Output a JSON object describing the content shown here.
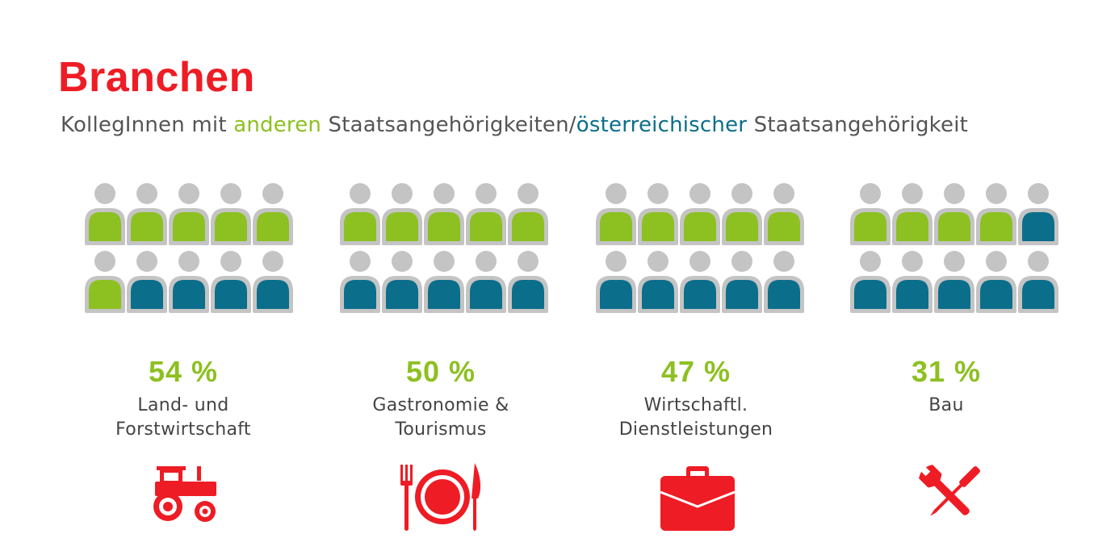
{
  "title": "Branchen",
  "subtitle": {
    "part1": "KollegInnen mit ",
    "green_word": "anderen",
    "part2": " Staatsangehörigkeiten/",
    "blue_word": "österreichischer",
    "part3": " Staatsangehörigkeit"
  },
  "colors": {
    "accent_red": "#ee1c24",
    "green": "#8dc021",
    "blue": "#0b6e8b",
    "gray": "#c4c4c4",
    "text": "#555555"
  },
  "chart_data": {
    "type": "pictograph",
    "icons_per_category": 10,
    "series": [
      {
        "name": "anderen Staatsangehörigkeiten",
        "color": "#8dc021"
      },
      {
        "name": "österreichischer Staatsangehörigkeit",
        "color": "#0b6e8b"
      }
    ],
    "categories": [
      {
        "label_line1": "Land- und",
        "label_line2": "Forstwirtschaft",
        "percent_label": "54 %",
        "value": 54,
        "icon": "tractor-icon"
      },
      {
        "label_line1": "Gastronomie &",
        "label_line2": "Tourismus",
        "percent_label": "50 %",
        "value": 50,
        "icon": "fork-plate-knife-icon"
      },
      {
        "label_line1": "Wirtschaftl.",
        "label_line2": "Dienstleistungen",
        "percent_label": "47 %",
        "value": 47,
        "icon": "briefcase-icon"
      },
      {
        "label_line1": "Bau",
        "label_line2": "",
        "percent_label": "31 %",
        "value": 31,
        "icon": "wrench-screwdriver-icon"
      }
    ]
  }
}
